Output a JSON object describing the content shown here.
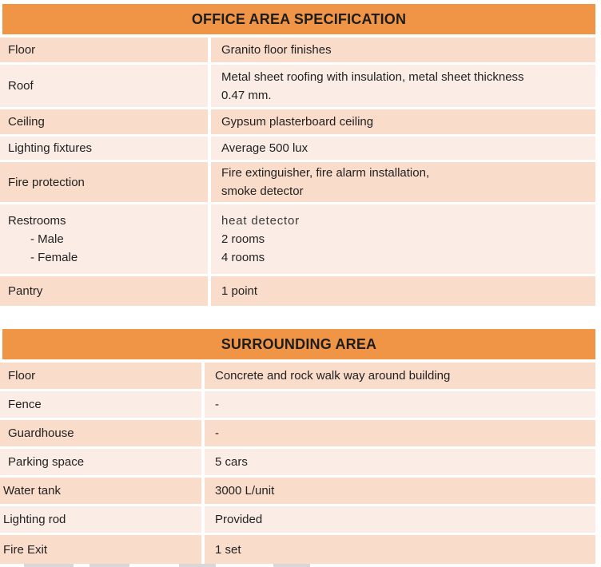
{
  "colors": {
    "header_orange": "#F09446",
    "row_peach": "#FADCCB",
    "row_light": "#FBEDE6",
    "text": "#222222"
  },
  "office_table": {
    "title": "OFFICE AREA SPECIFICATION",
    "rows": [
      {
        "label": "Floor",
        "value_lines": [
          "Granito floor finishes"
        ]
      },
      {
        "label": "Roof",
        "value_lines": [
          "Metal sheet roofing with insulation, metal sheet thickness",
          "0.47 mm."
        ]
      },
      {
        "label": "Ceiling",
        "value_lines": [
          "Gypsum plasterboard ceiling"
        ]
      },
      {
        "label": "Lighting fixtures",
        "value_lines": [
          "Average 500 lux"
        ]
      },
      {
        "label": "Fire protection",
        "value_lines": [
          "Fire extinguisher, fire alarm installation,",
          "smoke detector"
        ]
      },
      {
        "label": "Restrooms",
        "sub_labels": [
          "- Male",
          "- Female"
        ],
        "value_lines": [
          "heat detector",
          "2 rooms",
          "4 rooms"
        ]
      },
      {
        "label": "Pantry",
        "value_lines": [
          "1 point"
        ]
      }
    ]
  },
  "surrounding_table": {
    "title": "SURROUNDING AREA",
    "rows": [
      {
        "label": "Floor",
        "value_lines": [
          "Concrete and rock walk way around building"
        ]
      },
      {
        "label": "Fence",
        "value_lines": [
          "-"
        ]
      },
      {
        "label": "Guardhouse",
        "value_lines": [
          "-"
        ]
      },
      {
        "label": "Parking space",
        "value_lines": [
          "5 cars"
        ]
      },
      {
        "label": "Water tank",
        "value_lines": [
          "3000 L/unit"
        ]
      },
      {
        "label": "Lighting rod",
        "value_lines": [
          "Provided"
        ]
      },
      {
        "label": "Fire Exit",
        "value_lines": [
          "1 set"
        ]
      }
    ]
  }
}
